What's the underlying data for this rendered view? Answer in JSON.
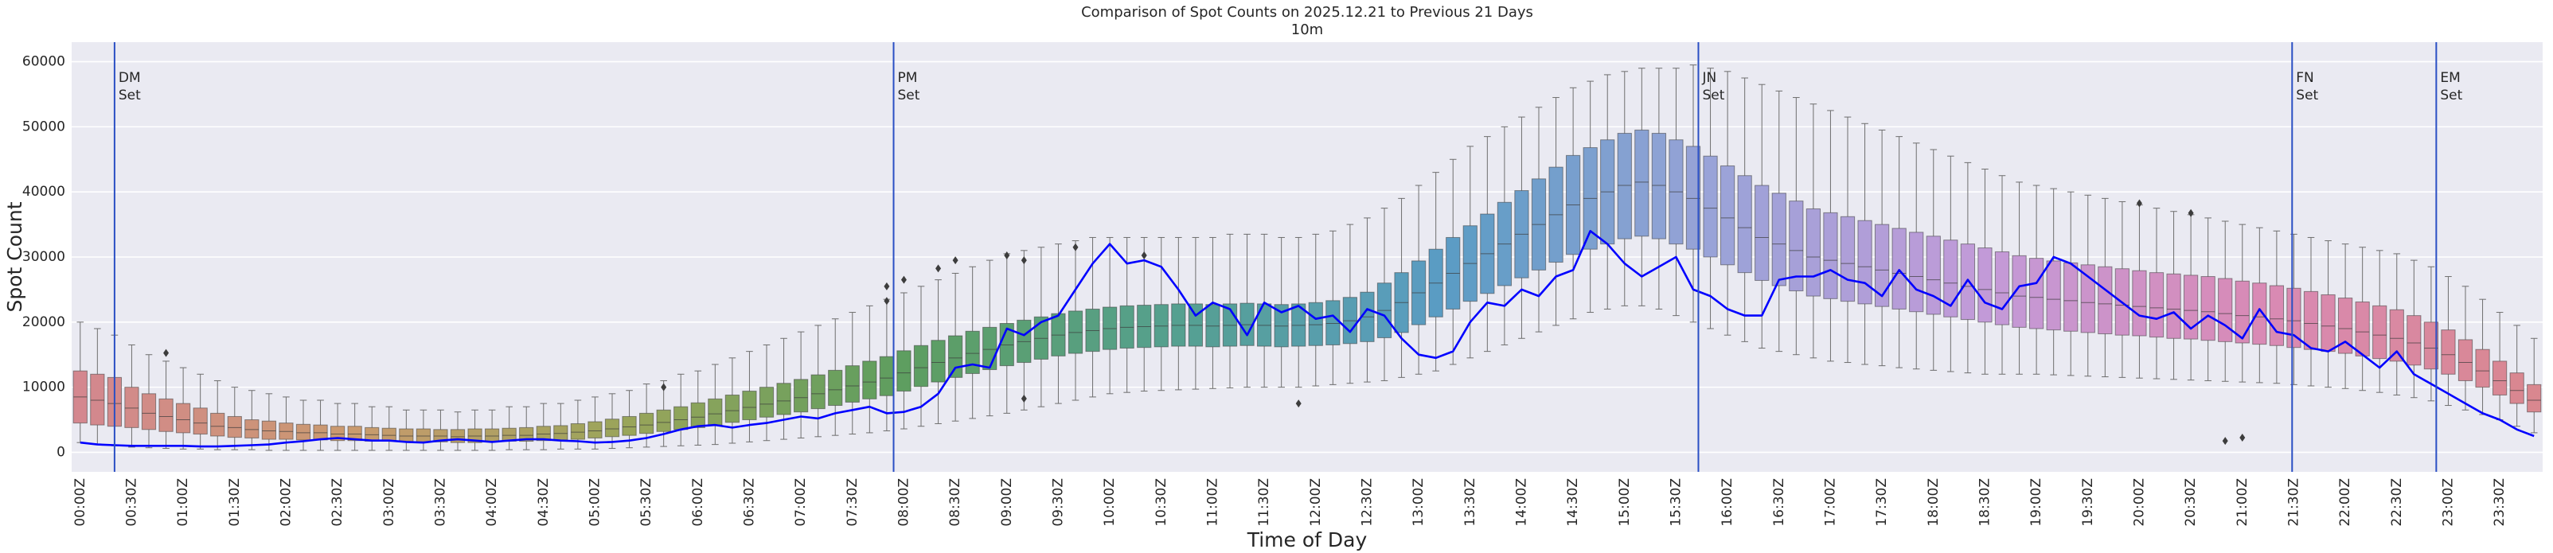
{
  "chart_data": {
    "type": "box",
    "title": "Comparison of Spot Counts on 2025.12.21 to Previous 21 Days",
    "subtitle": "10m",
    "xlabel": "Time of Day",
    "ylabel": "Spot Count",
    "ylim": [
      -3000,
      63000
    ],
    "yticks": [
      0,
      10000,
      20000,
      30000,
      40000,
      50000,
      60000
    ],
    "grid": true,
    "palette": [
      "#d4878f",
      "#c99a6e",
      "#9aa55a",
      "#5e9e5f",
      "#55a08f",
      "#5a9cc4",
      "#9aa3d8",
      "#c39ad8",
      "#d98ab5",
      "#d9878f"
    ],
    "categories": [
      "00:00Z",
      null,
      null,
      "00:30Z",
      null,
      null,
      "01:00Z",
      null,
      null,
      "01:30Z",
      null,
      null,
      "02:00Z",
      null,
      null,
      "02:30Z",
      null,
      null,
      "03:00Z",
      null,
      null,
      "03:30Z",
      null,
      null,
      "04:00Z",
      null,
      null,
      "04:30Z",
      null,
      null,
      "05:00Z",
      null,
      null,
      "05:30Z",
      null,
      null,
      "06:00Z",
      null,
      null,
      "06:30Z",
      null,
      null,
      "07:00Z",
      null,
      null,
      "07:30Z",
      null,
      null,
      "08:00Z",
      null,
      null,
      "08:30Z",
      null,
      null,
      "09:00Z",
      null,
      null,
      "09:30Z",
      null,
      null,
      "10:00Z",
      null,
      null,
      "10:30Z",
      null,
      null,
      "11:00Z",
      null,
      null,
      "11:30Z",
      null,
      null,
      "12:00Z",
      null,
      null,
      "12:30Z",
      null,
      null,
      "13:00Z",
      null,
      null,
      "13:30Z",
      null,
      null,
      "14:00Z",
      null,
      null,
      "14:30Z",
      null,
      null,
      "15:00Z",
      null,
      null,
      "15:30Z",
      null,
      null,
      "16:00Z",
      null,
      null,
      "16:30Z",
      null,
      null,
      "17:00Z",
      null,
      null,
      "17:30Z",
      null,
      null,
      "18:00Z",
      null,
      null,
      "18:30Z",
      null,
      null,
      "19:00Z",
      null,
      null,
      "19:30Z",
      null,
      null,
      "20:00Z",
      null,
      null,
      "20:30Z",
      null,
      null,
      "21:00Z",
      null,
      null,
      "21:30Z",
      null,
      null,
      "22:00Z",
      null,
      null,
      "22:30Z",
      null,
      null,
      "23:00Z",
      null,
      null,
      "23:30Z",
      null,
      null
    ],
    "boxes": [
      [
        1500,
        4500,
        8500,
        12500,
        20000
      ],
      [
        1200,
        4200,
        8000,
        12000,
        19000
      ],
      [
        1000,
        4000,
        7500,
        11500,
        18000
      ],
      [
        800,
        3800,
        6800,
        10000,
        16500
      ],
      [
        700,
        3500,
        6000,
        9000,
        15000
      ],
      [
        600,
        3200,
        5500,
        8200,
        14000
      ],
      [
        500,
        3000,
        5000,
        7500,
        13000
      ],
      [
        500,
        2800,
        4500,
        6800,
        12000
      ],
      [
        400,
        2500,
        4000,
        6000,
        11000
      ],
      [
        400,
        2300,
        3800,
        5500,
        10000
      ],
      [
        400,
        2200,
        3500,
        5000,
        9500
      ],
      [
        300,
        2000,
        3300,
        4800,
        9000
      ],
      [
        300,
        2000,
        3200,
        4500,
        8500
      ],
      [
        300,
        1900,
        3000,
        4300,
        8000
      ],
      [
        300,
        1900,
        3000,
        4200,
        8000
      ],
      [
        300,
        1800,
        2800,
        4000,
        7500
      ],
      [
        300,
        1800,
        2800,
        4000,
        7500
      ],
      [
        300,
        1700,
        2700,
        3800,
        7000
      ],
      [
        300,
        1700,
        2600,
        3700,
        7000
      ],
      [
        300,
        1600,
        2500,
        3600,
        6500
      ],
      [
        300,
        1600,
        2500,
        3600,
        6500
      ],
      [
        300,
        1600,
        2500,
        3500,
        6500
      ],
      [
        300,
        1500,
        2400,
        3500,
        6200
      ],
      [
        300,
        1500,
        2500,
        3600,
        6500
      ],
      [
        300,
        1600,
        2500,
        3600,
        6500
      ],
      [
        400,
        1700,
        2600,
        3700,
        7000
      ],
      [
        400,
        1700,
        2600,
        3800,
        7000
      ],
      [
        400,
        1800,
        2800,
        4000,
        7500
      ],
      [
        500,
        1900,
        2900,
        4100,
        7500
      ],
      [
        500,
        2000,
        3100,
        4400,
        8000
      ],
      [
        500,
        2200,
        3300,
        4700,
        8500
      ],
      [
        600,
        2400,
        3600,
        5100,
        9000
      ],
      [
        700,
        2600,
        3900,
        5500,
        9500
      ],
      [
        800,
        2900,
        4200,
        6000,
        10500
      ],
      [
        900,
        3200,
        4600,
        6500,
        11000
      ],
      [
        1000,
        3500,
        5000,
        7000,
        12000
      ],
      [
        1100,
        3800,
        5400,
        7600,
        12500
      ],
      [
        1200,
        4200,
        5900,
        8200,
        13500
      ],
      [
        1400,
        4600,
        6400,
        8800,
        14500
      ],
      [
        1600,
        5000,
        6900,
        9400,
        15500
      ],
      [
        1800,
        5400,
        7400,
        10000,
        16500
      ],
      [
        2000,
        5800,
        7900,
        10600,
        17500
      ],
      [
        2200,
        6200,
        8400,
        11200,
        18500
      ],
      [
        2400,
        6700,
        9000,
        11900,
        19500
      ],
      [
        2600,
        7200,
        9600,
        12600,
        20500
      ],
      [
        2800,
        7700,
        10200,
        13300,
        21500
      ],
      [
        3000,
        8200,
        10800,
        14000,
        22500
      ],
      [
        3300,
        8700,
        11400,
        14700,
        23500
      ],
      [
        3600,
        9400,
        12200,
        15600,
        24500
      ],
      [
        4000,
        10100,
        13000,
        16400,
        25500
      ],
      [
        4400,
        10800,
        13800,
        17200,
        26500
      ],
      [
        4800,
        11500,
        14500,
        17900,
        27500
      ],
      [
        5200,
        12100,
        15200,
        18600,
        28500
      ],
      [
        5600,
        12700,
        15800,
        19200,
        29500
      ],
      [
        6000,
        13300,
        16500,
        19800,
        30500
      ],
      [
        6500,
        13800,
        17000,
        20300,
        31000
      ],
      [
        7000,
        14300,
        17500,
        20800,
        31500
      ],
      [
        7500,
        14800,
        18000,
        21300,
        32000
      ],
      [
        8000,
        15200,
        18400,
        21700,
        32500
      ],
      [
        8500,
        15500,
        18700,
        22000,
        33000
      ],
      [
        9000,
        15800,
        19000,
        22300,
        33000
      ],
      [
        9200,
        16000,
        19200,
        22500,
        33000
      ],
      [
        9400,
        16100,
        19300,
        22600,
        33000
      ],
      [
        9500,
        16200,
        19400,
        22700,
        33000
      ],
      [
        9600,
        16300,
        19500,
        22800,
        33000
      ],
      [
        9700,
        16300,
        19500,
        22800,
        33000
      ],
      [
        9800,
        16200,
        19400,
        22700,
        33000
      ],
      [
        9900,
        16300,
        19500,
        22800,
        33500
      ],
      [
        10000,
        16400,
        19600,
        22900,
        33500
      ],
      [
        10000,
        16300,
        19500,
        22800,
        33500
      ],
      [
        10000,
        16200,
        19400,
        22700,
        33000
      ],
      [
        10000,
        16300,
        19500,
        22800,
        33000
      ],
      [
        10200,
        16400,
        19600,
        23000,
        33500
      ],
      [
        10400,
        16500,
        19800,
        23300,
        34000
      ],
      [
        10600,
        16700,
        20200,
        23800,
        35000
      ],
      [
        10800,
        17000,
        20800,
        24600,
        36000
      ],
      [
        11000,
        17600,
        21800,
        26000,
        37500
      ],
      [
        11500,
        18400,
        23000,
        27600,
        39000
      ],
      [
        12000,
        19600,
        24500,
        29400,
        41000
      ],
      [
        12500,
        20800,
        26000,
        31200,
        43000
      ],
      [
        13500,
        22000,
        27500,
        33000,
        45000
      ],
      [
        14500,
        23200,
        29000,
        34800,
        47000
      ],
      [
        15500,
        24400,
        30500,
        36600,
        48500
      ],
      [
        16500,
        25600,
        32000,
        38400,
        50000
      ],
      [
        17500,
        26800,
        33500,
        40200,
        51500
      ],
      [
        18500,
        28000,
        35000,
        42000,
        53000
      ],
      [
        19500,
        29200,
        36500,
        43800,
        54500
      ],
      [
        20500,
        30400,
        38000,
        45600,
        56000
      ],
      [
        21500,
        31200,
        39000,
        46800,
        57000
      ],
      [
        22000,
        32000,
        40000,
        48000,
        58000
      ],
      [
        22500,
        32800,
        41000,
        49000,
        58500
      ],
      [
        22500,
        33200,
        41500,
        49500,
        59000
      ],
      [
        22000,
        32800,
        41000,
        49000,
        59000
      ],
      [
        21000,
        32000,
        40000,
        48000,
        59000
      ],
      [
        20000,
        31200,
        39000,
        47000,
        59500
      ],
      [
        19000,
        30000,
        37500,
        45500,
        59000
      ],
      [
        18000,
        28800,
        36000,
        44000,
        58500
      ],
      [
        17000,
        27600,
        34500,
        42500,
        57500
      ],
      [
        16000,
        26400,
        33000,
        41000,
        56500
      ],
      [
        15500,
        25600,
        32000,
        39800,
        55500
      ],
      [
        15000,
        24800,
        31000,
        38600,
        54500
      ],
      [
        14500,
        24000,
        30000,
        37400,
        53500
      ],
      [
        14000,
        23600,
        29500,
        36800,
        52500
      ],
      [
        13800,
        23200,
        29000,
        36200,
        51500
      ],
      [
        13500,
        22800,
        28500,
        35600,
        50500
      ],
      [
        13300,
        22400,
        28000,
        35000,
        49500
      ],
      [
        13000,
        22000,
        27500,
        34400,
        48500
      ],
      [
        12800,
        21600,
        27000,
        33800,
        47500
      ],
      [
        12600,
        21200,
        26500,
        33200,
        46500
      ],
      [
        12400,
        20800,
        26000,
        32600,
        45500
      ],
      [
        12200,
        20400,
        25500,
        32000,
        44500
      ],
      [
        12000,
        20000,
        25000,
        31400,
        43500
      ],
      [
        12000,
        19600,
        24500,
        30800,
        42500
      ],
      [
        12000,
        19200,
        24000,
        30200,
        41500
      ],
      [
        12000,
        19000,
        23800,
        29800,
        41000
      ],
      [
        11900,
        18800,
        23500,
        29400,
        40500
      ],
      [
        11800,
        18600,
        23300,
        29100,
        40000
      ],
      [
        11700,
        18400,
        23000,
        28800,
        39500
      ],
      [
        11600,
        18200,
        22800,
        28500,
        39000
      ],
      [
        11500,
        18000,
        22600,
        28200,
        38500
      ],
      [
        11400,
        17900,
        22400,
        27900,
        38000
      ],
      [
        11300,
        17700,
        22200,
        27600,
        37500
      ],
      [
        11200,
        17500,
        22000,
        27400,
        37000
      ],
      [
        11100,
        17400,
        21800,
        27200,
        36500
      ],
      [
        11000,
        17200,
        21600,
        27000,
        36000
      ],
      [
        10900,
        17000,
        21300,
        26700,
        35500
      ],
      [
        10800,
        16800,
        21000,
        26300,
        35000
      ],
      [
        10700,
        16600,
        20800,
        26000,
        34500
      ],
      [
        10600,
        16400,
        20500,
        25600,
        34000
      ],
      [
        10400,
        16100,
        20200,
        25200,
        33500
      ],
      [
        10200,
        15800,
        19800,
        24700,
        33000
      ],
      [
        10000,
        15500,
        19400,
        24200,
        32500
      ],
      [
        9800,
        15200,
        19000,
        23700,
        32000
      ],
      [
        9500,
        14800,
        18500,
        23100,
        31500
      ],
      [
        9200,
        14400,
        18000,
        22500,
        31000
      ],
      [
        8800,
        14000,
        17500,
        21900,
        30500
      ],
      [
        8400,
        13400,
        16800,
        21000,
        29500
      ],
      [
        7900,
        12800,
        16000,
        20000,
        28500
      ],
      [
        7200,
        12000,
        15000,
        18800,
        27000
      ],
      [
        6500,
        11000,
        13800,
        17300,
        25500
      ],
      [
        5800,
        10000,
        12500,
        15800,
        23500
      ],
      [
        5000,
        8800,
        11000,
        14000,
        21500
      ],
      [
        4000,
        7500,
        9500,
        12200,
        19500
      ],
      [
        3000,
        6200,
        8000,
        10400,
        17500
      ]
    ],
    "today": {
      "color": "#0000ff",
      "values": [
        1500,
        1200,
        1100,
        1000,
        1000,
        1000,
        1000,
        900,
        900,
        1000,
        1100,
        1200,
        1500,
        1700,
        2000,
        2200,
        2000,
        1800,
        1800,
        1600,
        1500,
        1800,
        2000,
        1800,
        1600,
        1800,
        2000,
        2000,
        1800,
        1700,
        1500,
        1600,
        1800,
        2200,
        2800,
        3500,
        4000,
        4200,
        3800,
        4200,
        4500,
        5000,
        5500,
        5200,
        6000,
        6500,
        7000,
        6000,
        6200,
        7000,
        9000,
        13000,
        13500,
        13000,
        19000,
        18000,
        20000,
        21000,
        25000,
        29000,
        32000,
        29000,
        29500,
        28500,
        25000,
        21000,
        23000,
        22000,
        18000,
        23000,
        21500,
        22500,
        20500,
        21000,
        18500,
        22000,
        21000,
        17500,
        15000,
        14500,
        15500,
        20000,
        23000,
        22500,
        25000,
        24000,
        27000,
        28000,
        34000,
        32000,
        29000,
        27000,
        28500,
        30000,
        25000,
        24000,
        22000,
        21000,
        21000,
        26500,
        27000,
        27000,
        28000,
        26500,
        26000,
        24000,
        28000,
        25000,
        24000,
        22500,
        26500,
        23000,
        22000,
        25500,
        26000,
        30000,
        29000,
        27000,
        25000,
        23000,
        21000,
        20500,
        21500,
        19000,
        21000,
        19500,
        17500,
        22000,
        18500,
        18000,
        16000,
        15500,
        17000,
        15000,
        13000,
        15500,
        12000,
        10500,
        9000,
        7500,
        6000,
        5000,
        3500,
        2500
      ]
    },
    "outliers": {
      "x": [
        5,
        34,
        47,
        47,
        48,
        50,
        51,
        54,
        55,
        55,
        58,
        62,
        71,
        120,
        123,
        125,
        126
      ],
      "y": [
        15250,
        10000,
        25500,
        23250,
        26500,
        28250,
        29500,
        30250,
        29500,
        8250,
        31500,
        30250,
        7500,
        38250,
        36750,
        1750,
        2250
      ]
    },
    "annotations": [
      {
        "x": 2.0,
        "lines": [
          "DM",
          "Set"
        ]
      },
      {
        "x": 47.4,
        "lines": [
          "PM",
          "Set"
        ]
      },
      {
        "x": 94.3,
        "lines": [
          "JN",
          "Set"
        ]
      },
      {
        "x": 128.9,
        "lines": [
          "FN",
          "Set"
        ]
      },
      {
        "x": 137.3,
        "lines": [
          "EM",
          "Set"
        ]
      }
    ],
    "annotation_color": "#2a4fc4"
  }
}
